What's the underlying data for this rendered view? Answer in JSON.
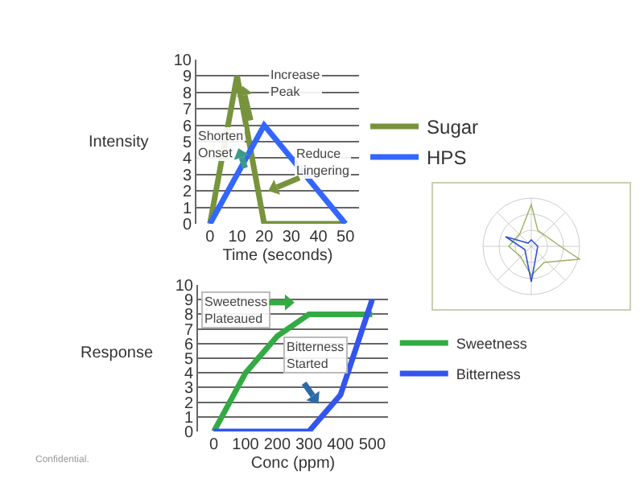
{
  "chart_data": [
    {
      "type": "line",
      "xlabel": "Time (seconds)",
      "ylabel": "Intensity",
      "xlim": [
        -5,
        55
      ],
      "xticks": [
        0,
        10,
        20,
        30,
        40,
        50
      ],
      "ylim": [
        0,
        10
      ],
      "yticks": [
        0,
        1,
        2,
        3,
        4,
        5,
        6,
        7,
        8,
        9,
        10
      ],
      "grid": "y",
      "legend": "right",
      "marker": "none",
      "line_style": "solid",
      "series": [
        {
          "name": "Sugar",
          "color": "#77933c",
          "x": [
            0,
            10,
            20,
            50
          ],
          "values": [
            0,
            9,
            0,
            0
          ]
        },
        {
          "name": "HPS",
          "color": "#3366ff",
          "x": [
            0,
            20,
            50
          ],
          "values": [
            0,
            6,
            0
          ]
        }
      ],
      "annotations": [
        "Increase\nPeak",
        "Shorten\nOnset",
        "Reduce\nLingering"
      ]
    },
    {
      "type": "line",
      "xlabel": "Conc (ppm)",
      "ylabel": "Response",
      "xlim": [
        -50,
        550
      ],
      "xticks": [
        0,
        100,
        200,
        300,
        400,
        500
      ],
      "ylim": [
        0,
        10
      ],
      "yticks": [
        0,
        1,
        2,
        3,
        4,
        5,
        6,
        7,
        8,
        9,
        10
      ],
      "grid": "y",
      "legend": "right",
      "marker": "none",
      "line_style": "solid",
      "series": [
        {
          "name": "Sweetness",
          "color": "#33aa44",
          "x": [
            0,
            100,
            200,
            300,
            500
          ],
          "values": [
            0,
            4,
            6.5,
            8,
            8
          ]
        },
        {
          "name": "Bitterness",
          "color": "#3355ee",
          "x": [
            0,
            300,
            400,
            500
          ],
          "values": [
            0,
            0,
            2.5,
            9
          ]
        }
      ],
      "annotations": [
        "Sweetness\nPlateaued",
        "Bitterness\nStarted",
        "Confidential."
      ]
    }
  ]
}
